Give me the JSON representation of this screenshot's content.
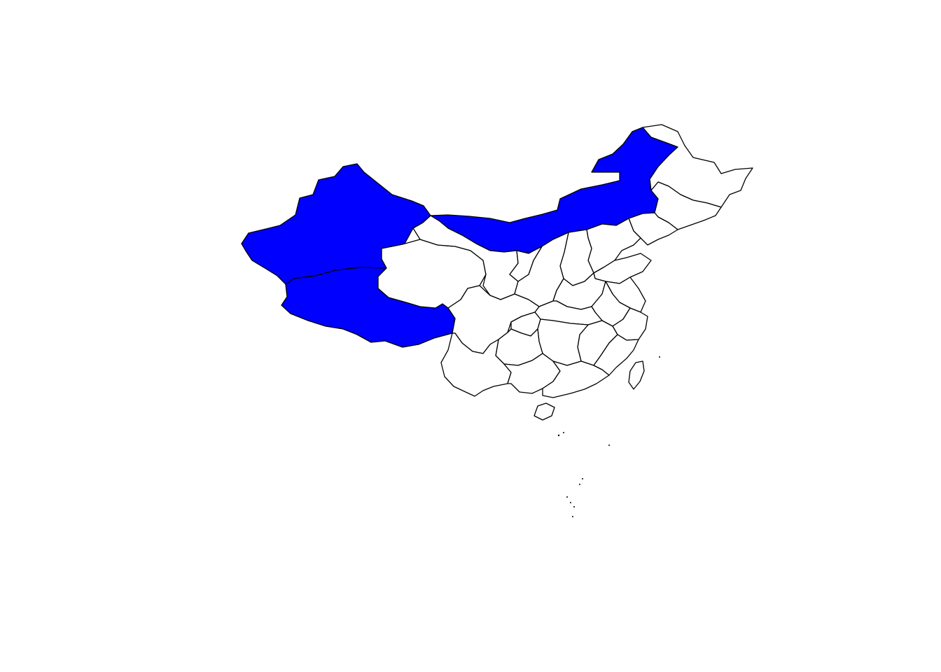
{
  "map": {
    "background_color": "#ffffff",
    "default_fill": "#ffffff",
    "highlight_fill": "#0000ff",
    "border_color": "#000000",
    "regions": [
      {
        "id": "xinjiang",
        "highlighted": true
      },
      {
        "id": "tibet",
        "highlighted": true
      },
      {
        "id": "inner-mongolia",
        "highlighted": true
      },
      {
        "id": "qinghai",
        "highlighted": false
      },
      {
        "id": "gansu",
        "highlighted": false
      },
      {
        "id": "heilongjiang",
        "highlighted": false
      },
      {
        "id": "jilin",
        "highlighted": false
      },
      {
        "id": "liaoning",
        "highlighted": false
      },
      {
        "id": "hebei",
        "highlighted": false
      },
      {
        "id": "shanxi",
        "highlighted": false
      },
      {
        "id": "shaanxi",
        "highlighted": false
      },
      {
        "id": "ningxia",
        "highlighted": false
      },
      {
        "id": "shandong",
        "highlighted": false
      },
      {
        "id": "henan",
        "highlighted": false
      },
      {
        "id": "jiangsu",
        "highlighted": false
      },
      {
        "id": "anhui",
        "highlighted": false
      },
      {
        "id": "hubei",
        "highlighted": false
      },
      {
        "id": "sichuan",
        "highlighted": false
      },
      {
        "id": "chongqing",
        "highlighted": false
      },
      {
        "id": "zhejiang",
        "highlighted": false
      },
      {
        "id": "jiangxi",
        "highlighted": false
      },
      {
        "id": "hunan",
        "highlighted": false
      },
      {
        "id": "guizhou",
        "highlighted": false
      },
      {
        "id": "yunnan",
        "highlighted": false
      },
      {
        "id": "guangxi",
        "highlighted": false
      },
      {
        "id": "guangdong",
        "highlighted": false
      },
      {
        "id": "fujian",
        "highlighted": false
      },
      {
        "id": "taiwan",
        "highlighted": false
      },
      {
        "id": "hainan",
        "highlighted": false
      }
    ]
  }
}
